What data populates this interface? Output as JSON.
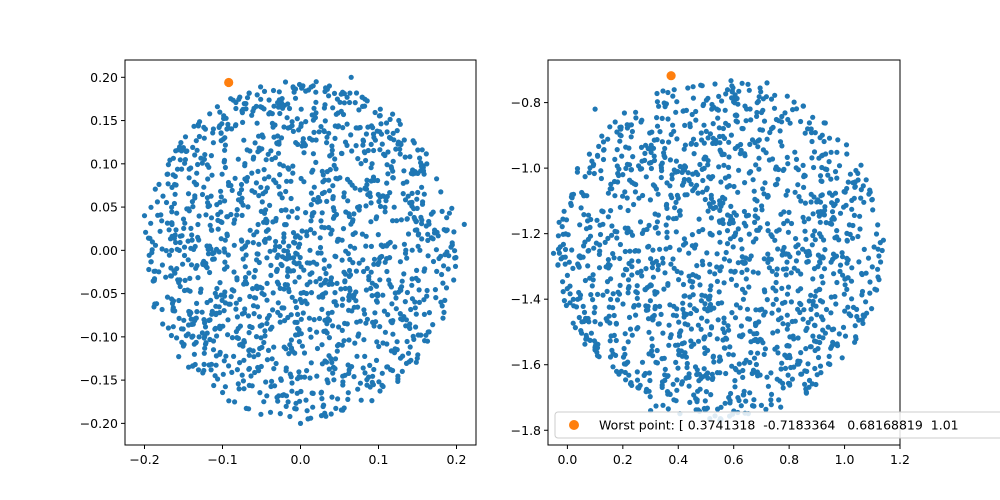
{
  "colors": {
    "scatter": "#1f77b4",
    "worst": "#ff7f0e",
    "axes": "#000000",
    "background": "#ffffff"
  },
  "chart_data": [
    {
      "type": "scatter",
      "title": "",
      "xlabel": "",
      "ylabel": "",
      "xlim": [
        -0.225,
        0.225
      ],
      "ylim": [
        -0.225,
        0.22
      ],
      "xticks": [
        -0.2,
        -0.1,
        0.0,
        0.1,
        0.2
      ],
      "xtick_labels": [
        "−0.2",
        "−0.1",
        "0.0",
        "0.1",
        "0.2"
      ],
      "yticks": [
        -0.2,
        -0.15,
        -0.1,
        -0.05,
        0.0,
        0.05,
        0.1,
        0.15,
        0.2
      ],
      "ytick_labels": [
        "−0.20",
        "−0.15",
        "−0.10",
        "−0.05",
        "0.00",
        "0.05",
        "0.10",
        "0.15",
        "0.20"
      ],
      "grid": false,
      "cloud": {
        "center": [
          0.0,
          0.0
        ],
        "radius_x": 0.205,
        "radius_y": 0.2,
        "approx_points": 1500
      },
      "series": [
        {
          "color": "scatter",
          "x": [
            0.065,
            -0.16,
            0.21,
            -0.2,
            0.18,
            -0.13,
            0.0
          ],
          "y": [
            0.2,
            0.115,
            0.03,
            0.04,
            -0.06,
            -0.1,
            -0.2
          ]
        },
        {
          "color": "worst",
          "x": [
            -0.092
          ],
          "y": [
            0.194
          ]
        }
      ]
    },
    {
      "type": "scatter",
      "title": "",
      "xlabel": "",
      "ylabel": "",
      "xlim": [
        -0.07,
        1.2
      ],
      "ylim": [
        -1.845,
        -0.67
      ],
      "xticks": [
        0.0,
        0.2,
        0.4,
        0.6,
        0.8,
        1.0,
        1.2
      ],
      "xtick_labels": [
        "0.0",
        "0.2",
        "0.4",
        "0.6",
        "0.8",
        "1.0",
        "1.2"
      ],
      "yticks": [
        -1.8,
        -1.6,
        -1.4,
        -1.2,
        -1.0,
        -0.8
      ],
      "ytick_labels": [
        "−1.8",
        "−1.6",
        "−1.4",
        "−1.2",
        "−1.0",
        "−0.8"
      ],
      "grid": false,
      "cloud": {
        "center": [
          0.55,
          -1.25
        ],
        "radius_x": 0.6,
        "radius_y": 0.53,
        "approx_points": 1500
      },
      "series": [
        {
          "color": "scatter",
          "x": [
            0.72,
            0.1,
            1.14,
            -0.05,
            0.95,
            0.3,
            0.55
          ],
          "y": [
            -0.74,
            -0.82,
            -1.22,
            -1.26,
            -1.55,
            -1.74,
            -1.77
          ]
        },
        {
          "color": "worst",
          "x": [
            0.374
          ],
          "y": [
            -0.718
          ]
        }
      ],
      "legend": {
        "placement": "lower-right",
        "entries": [
          {
            "color": "worst",
            "label": "Worst point: [ 0.3741318  -0.7183364   0.68168819  1.01"
          }
        ]
      }
    }
  ]
}
